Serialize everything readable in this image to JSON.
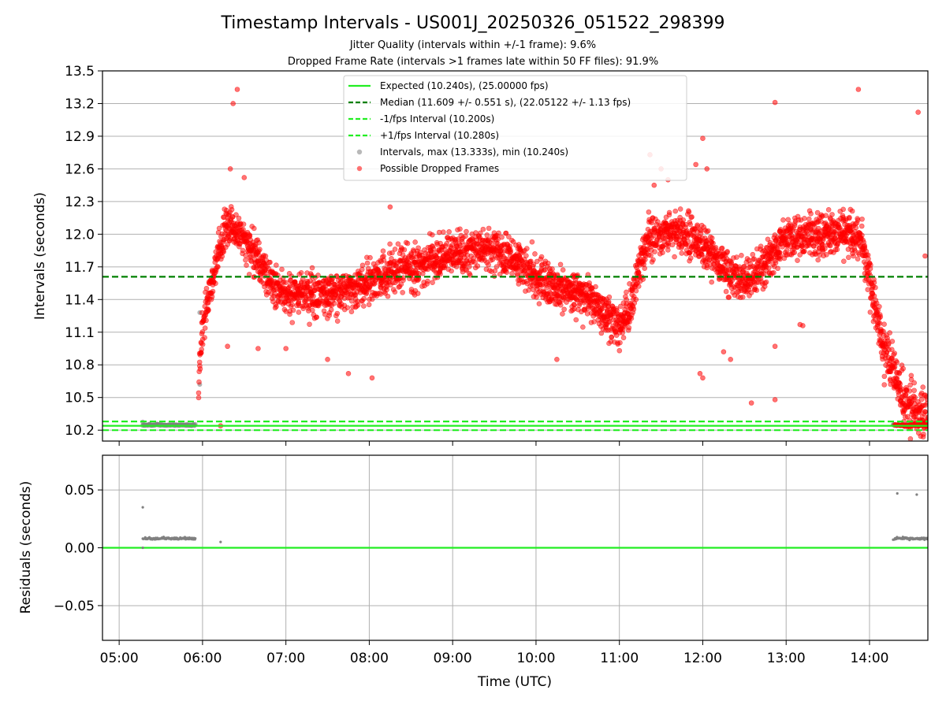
{
  "chart_data": [
    {
      "panel": "intervals",
      "type": "scatter",
      "title": "Timestamp Intervals - US001J_20250326_051522_298399",
      "subtitle_lines": [
        "Jitter Quality (intervals within +/-1 frame): 9.6%",
        "Dropped Frame Rate (intervals >1 frames late within 50 FF files): 91.9%"
      ],
      "ylabel": "Intervals (seconds)",
      "xlim": [
        "04:48",
        "14:42"
      ],
      "ylim": [
        10.1,
        13.5
      ],
      "yticks": [
        10.2,
        10.5,
        10.8,
        11.1,
        11.4,
        11.7,
        12.0,
        12.3,
        12.6,
        12.9,
        13.2,
        13.5
      ],
      "ytick_labels": [
        "10.2",
        "10.5",
        "10.8",
        "11.1",
        "11.4",
        "11.7",
        "12.0",
        "12.3",
        "12.6",
        "12.9",
        "13.2",
        "13.5"
      ],
      "grid": "horizontal",
      "legend_position": "top-center",
      "reference_lines": [
        {
          "label": "Expected (10.240s), (25.00000 fps)",
          "value": 10.24,
          "style": "solid",
          "color": "#22ee22"
        },
        {
          "label": "Median (11.609 +/- 0.551 s), (22.05122 +/- 1.13 fps)",
          "value": 11.609,
          "style": "dashed",
          "color": "#008000"
        },
        {
          "label": "-1/fps Interval (10.200s)",
          "value": 10.2,
          "style": "dashed",
          "color": "#22ee22"
        },
        {
          "label": "+1/fps Interval (10.280s)",
          "value": 10.28,
          "style": "dashed",
          "color": "#22ee22"
        }
      ],
      "series": [
        {
          "name": "Intervals, max (13.333s), min (10.240s)",
          "color": "#808080",
          "summary": {
            "max": 13.333,
            "min": 10.24
          }
        },
        {
          "name": "Possible Dropped Frames",
          "color": "#ff0000"
        }
      ],
      "trend": [
        {
          "t": "05:57",
          "y": 10.6
        },
        {
          "t": "06:00",
          "y": 11.15
        },
        {
          "t": "06:05",
          "y": 11.45
        },
        {
          "t": "06:10",
          "y": 11.75
        },
        {
          "t": "06:15",
          "y": 12.0
        },
        {
          "t": "06:20",
          "y": 12.1
        },
        {
          "t": "06:30",
          "y": 11.95
        },
        {
          "t": "06:40",
          "y": 11.75
        },
        {
          "t": "06:50",
          "y": 11.55
        },
        {
          "t": "07:00",
          "y": 11.45
        },
        {
          "t": "07:15",
          "y": 11.45
        },
        {
          "t": "07:30",
          "y": 11.42
        },
        {
          "t": "07:45",
          "y": 11.5
        },
        {
          "t": "08:00",
          "y": 11.58
        },
        {
          "t": "08:15",
          "y": 11.65
        },
        {
          "t": "08:30",
          "y": 11.7
        },
        {
          "t": "08:45",
          "y": 11.75
        },
        {
          "t": "09:00",
          "y": 11.82
        },
        {
          "t": "09:15",
          "y": 11.85
        },
        {
          "t": "09:30",
          "y": 11.85
        },
        {
          "t": "09:45",
          "y": 11.75
        },
        {
          "t": "10:00",
          "y": 11.6
        },
        {
          "t": "10:15",
          "y": 11.5
        },
        {
          "t": "10:30",
          "y": 11.45
        },
        {
          "t": "10:45",
          "y": 11.35
        },
        {
          "t": "10:55",
          "y": 11.2
        },
        {
          "t": "11:00",
          "y": 11.15
        },
        {
          "t": "11:05",
          "y": 11.25
        },
        {
          "t": "11:10",
          "y": 11.45
        },
        {
          "t": "11:15",
          "y": 11.7
        },
        {
          "t": "11:20",
          "y": 11.95
        },
        {
          "t": "11:30",
          "y": 12.0
        },
        {
          "t": "11:45",
          "y": 12.0
        },
        {
          "t": "12:00",
          "y": 11.9
        },
        {
          "t": "12:15",
          "y": 11.7
        },
        {
          "t": "12:30",
          "y": 11.55
        },
        {
          "t": "12:45",
          "y": 11.75
        },
        {
          "t": "13:00",
          "y": 11.95
        },
        {
          "t": "13:15",
          "y": 12.0
        },
        {
          "t": "13:30",
          "y": 12.0
        },
        {
          "t": "13:45",
          "y": 12.0
        },
        {
          "t": "13:55",
          "y": 11.95
        },
        {
          "t": "14:00",
          "y": 11.6
        },
        {
          "t": "14:05",
          "y": 11.25
        },
        {
          "t": "14:10",
          "y": 11.0
        },
        {
          "t": "14:15",
          "y": 10.85
        },
        {
          "t": "14:20",
          "y": 10.65
        },
        {
          "t": "14:25",
          "y": 10.5
        },
        {
          "t": "14:30",
          "y": 10.4
        },
        {
          "t": "14:35",
          "y": 10.35
        },
        {
          "t": "14:42",
          "y": 10.3
        }
      ],
      "outliers": [
        {
          "t": "06:22",
          "y": 13.2
        },
        {
          "t": "06:25",
          "y": 13.33
        },
        {
          "t": "06:20",
          "y": 12.6
        },
        {
          "t": "06:30",
          "y": 12.52
        },
        {
          "t": "06:18",
          "y": 10.97
        },
        {
          "t": "06:40",
          "y": 10.95
        },
        {
          "t": "07:00",
          "y": 10.95
        },
        {
          "t": "07:30",
          "y": 10.85
        },
        {
          "t": "08:02",
          "y": 10.68
        },
        {
          "t": "07:45",
          "y": 10.72
        },
        {
          "t": "08:15",
          "y": 12.25
        },
        {
          "t": "10:15",
          "y": 10.85
        },
        {
          "t": "11:22",
          "y": 12.73
        },
        {
          "t": "11:30",
          "y": 12.6
        },
        {
          "t": "11:35",
          "y": 12.5
        },
        {
          "t": "11:55",
          "y": 12.64
        },
        {
          "t": "12:00",
          "y": 12.88
        },
        {
          "t": "12:03",
          "y": 12.6
        },
        {
          "t": "11:58",
          "y": 10.72
        },
        {
          "t": "12:00",
          "y": 10.68
        },
        {
          "t": "12:15",
          "y": 10.92
        },
        {
          "t": "12:20",
          "y": 10.85
        },
        {
          "t": "12:35",
          "y": 10.45
        },
        {
          "t": "12:52",
          "y": 10.48
        },
        {
          "t": "12:52",
          "y": 10.97
        },
        {
          "t": "12:52",
          "y": 13.21
        },
        {
          "t": "13:52",
          "y": 13.33
        },
        {
          "t": "14:35",
          "y": 13.12
        },
        {
          "t": "14:40",
          "y": 11.8
        },
        {
          "t": "13:10",
          "y": 11.17
        },
        {
          "t": "13:12",
          "y": 11.16
        },
        {
          "t": "11:25",
          "y": 12.45
        },
        {
          "t": "06:13",
          "y": 10.24
        }
      ],
      "normal_clusters": [
        {
          "t_start": "05:17",
          "t_end": "05:55",
          "y": 10.248
        },
        {
          "t_start": "14:17",
          "t_end": "14:42",
          "y": 10.248
        }
      ],
      "gray_outliers": [
        {
          "t": "05:58",
          "y": 11.28
        },
        {
          "t": "05:58",
          "y": 10.62
        },
        {
          "t": "05:17",
          "y": 10.275
        }
      ]
    },
    {
      "panel": "residuals",
      "type": "scatter",
      "xlabel": "Time (UTC)",
      "ylabel": "Residuals (seconds)",
      "xlim": [
        "04:48",
        "14:42"
      ],
      "ylim": [
        -0.08,
        0.08
      ],
      "yticks": [
        -0.05,
        0.0,
        0.05
      ],
      "ytick_labels": [
        "−0.05",
        "0.00",
        "0.05"
      ],
      "xticks": [
        "05:00",
        "06:00",
        "07:00",
        "08:00",
        "09:00",
        "10:00",
        "11:00",
        "12:00",
        "13:00",
        "14:00"
      ],
      "grid": "both",
      "reference_line": {
        "value": 0.0,
        "color": "#22ee22"
      },
      "series": [
        {
          "name": "Residuals",
          "color": "#808080",
          "clusters": [
            {
              "t_start": "05:17",
              "t_end": "05:55",
              "y": 0.008
            },
            {
              "t_start": "14:18",
              "t_end": "14:42",
              "y": 0.008
            }
          ],
          "points": [
            {
              "t": "05:17",
              "y": 0.035
            },
            {
              "t": "05:17",
              "y": 0.0
            },
            {
              "t": "06:13",
              "y": 0.005
            },
            {
              "t": "14:20",
              "y": 0.047
            },
            {
              "t": "14:34",
              "y": 0.046
            },
            {
              "t": "14:17",
              "y": 0.007
            }
          ]
        }
      ]
    }
  ]
}
